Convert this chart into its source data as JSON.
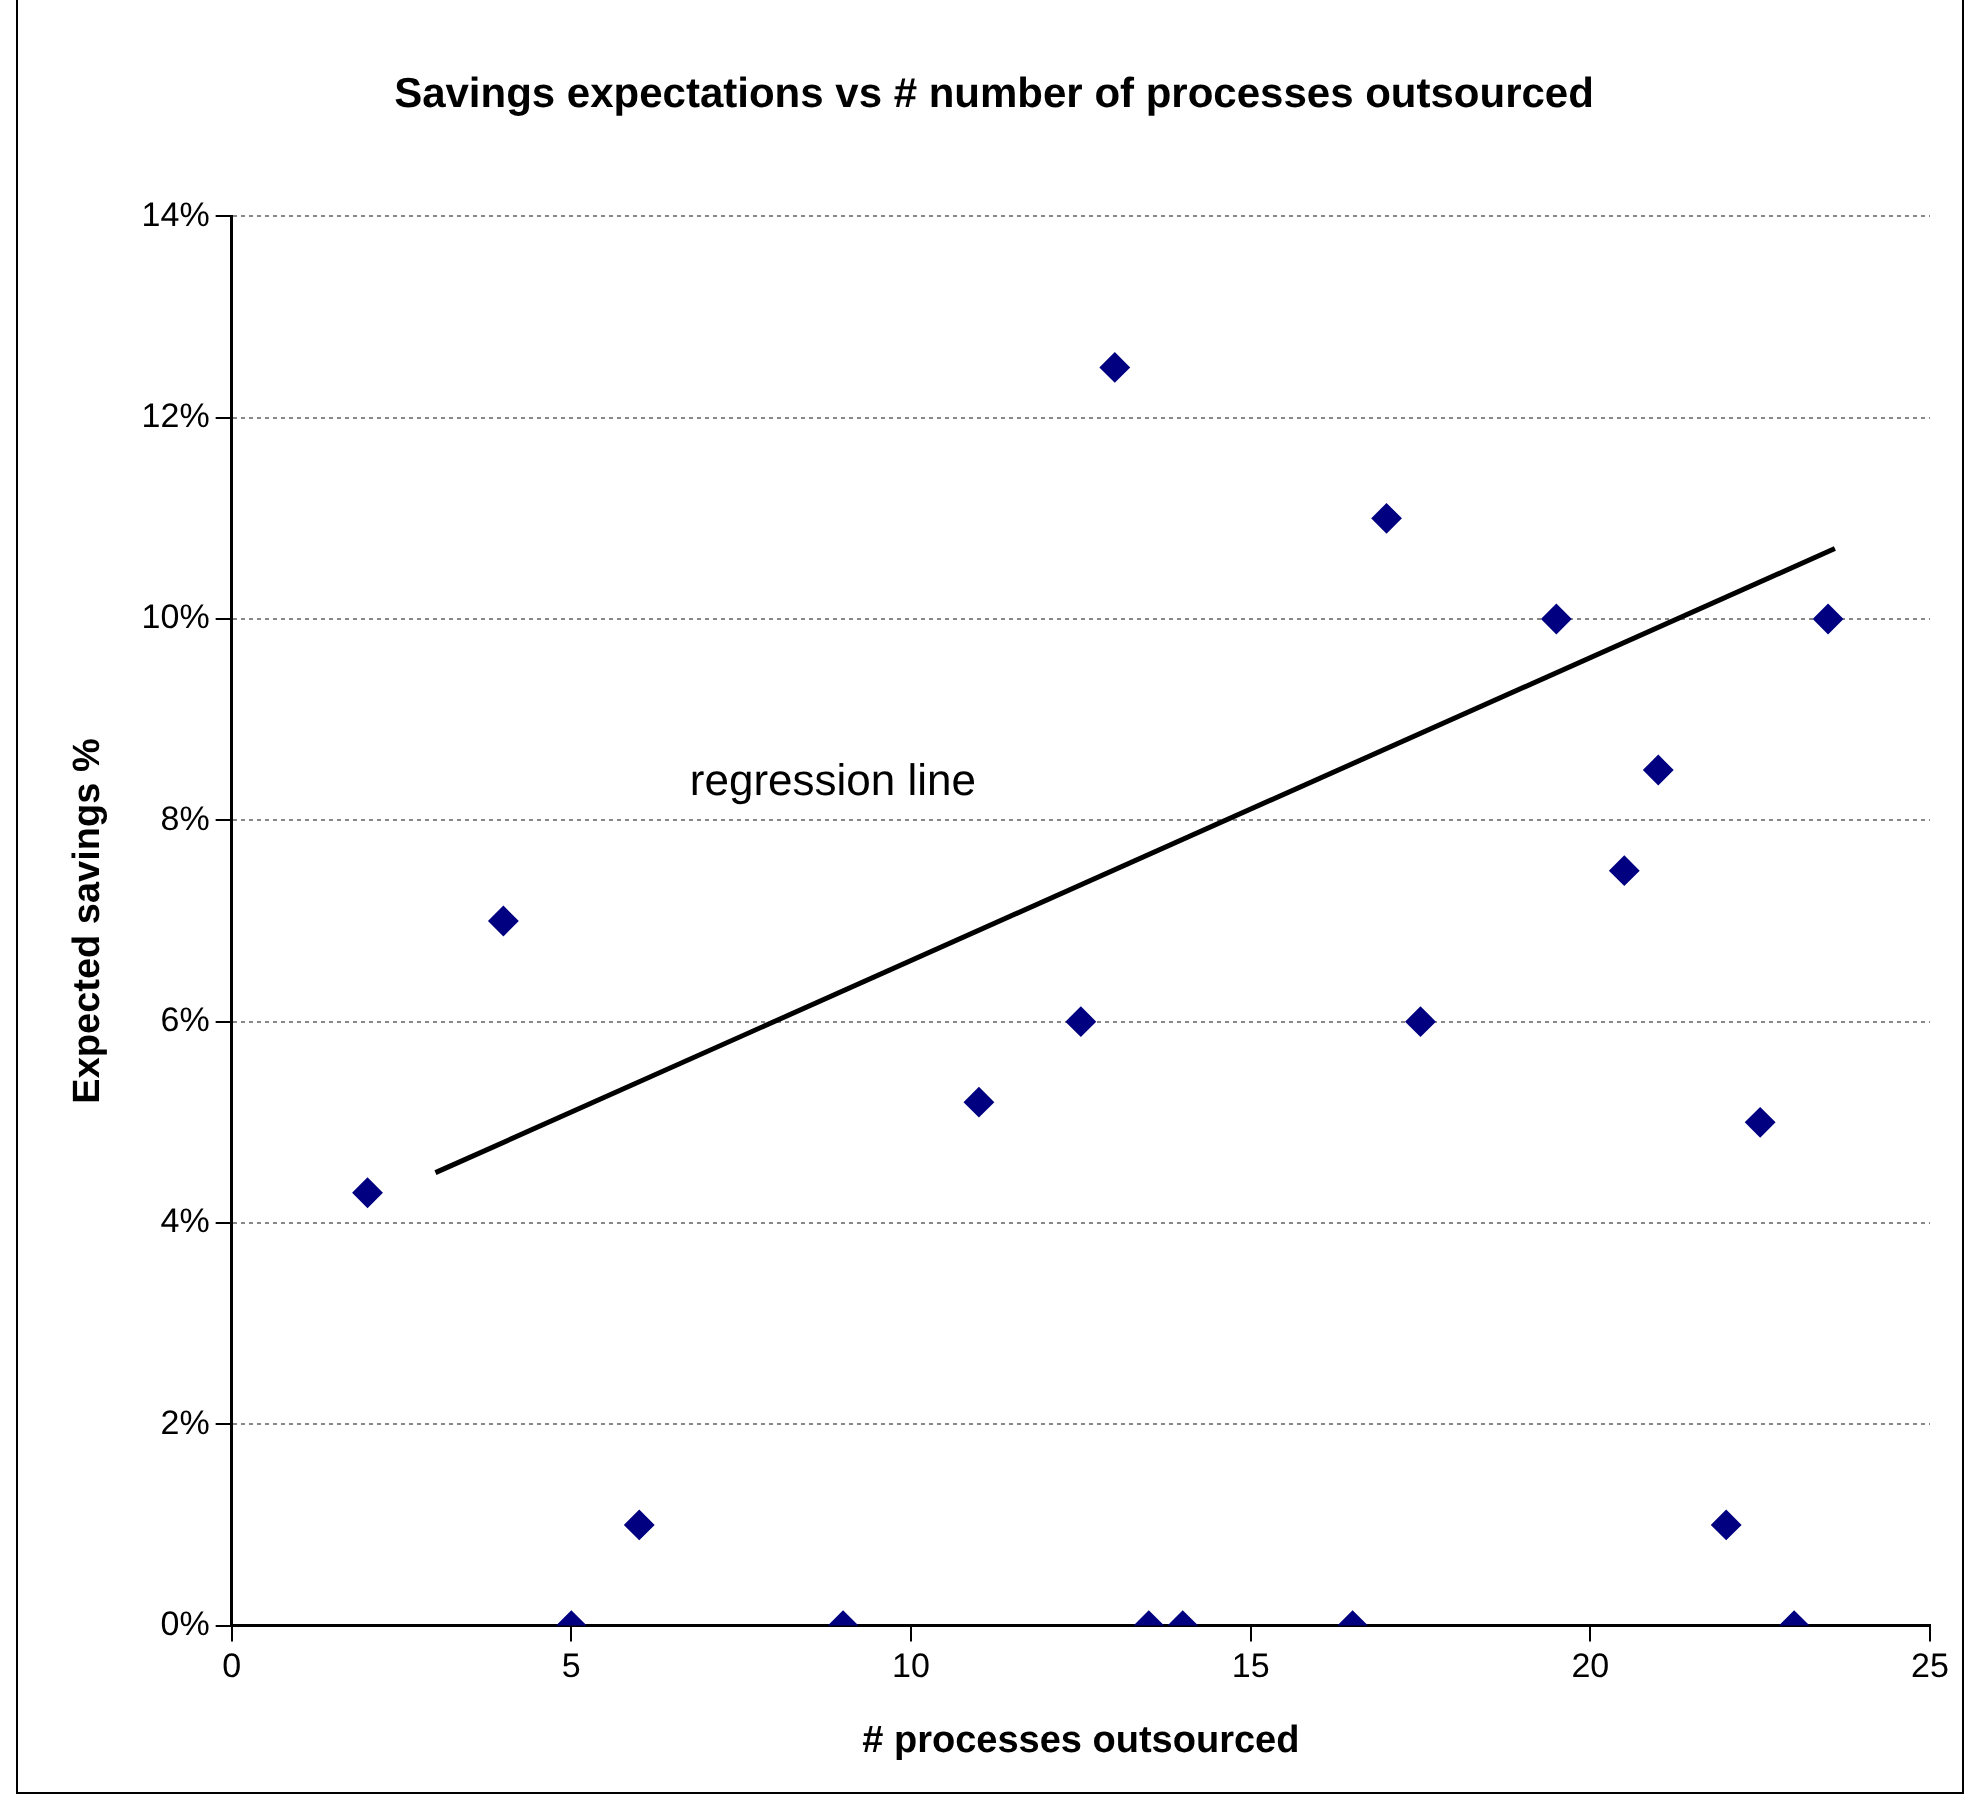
{
  "chart_data": {
    "type": "scatter",
    "title": "Savings expectations vs # number of processes outsourced",
    "xlabel": "# processes outsourced",
    "ylabel": "Expected savings %",
    "x": [
      2,
      4,
      5,
      6,
      9,
      11,
      12.5,
      13,
      13.5,
      14,
      16.5,
      17,
      17.5,
      19.5,
      20.5,
      21,
      22,
      22.5,
      23,
      23.5
    ],
    "series": [
      {
        "color": "#000080",
        "marker": "diamond",
        "values": [
          4.3,
          7,
          0,
          1,
          0,
          5.2,
          6,
          12.5,
          0,
          0,
          0,
          11,
          6,
          10,
          7.5,
          8.5,
          1,
          5,
          0,
          10
        ]
      },
      {
        "type": "line",
        "color": "#000000",
        "marker": "none",
        "line_style": "solid",
        "x": [
          3,
          23.6
        ],
        "values": [
          4.5,
          10.7
        ]
      }
    ],
    "xlim": [
      0,
      25
    ],
    "xticks": [
      0,
      5,
      10,
      15,
      20,
      25
    ],
    "ylim": [
      0,
      14
    ],
    "yticks": [
      {
        "value": 0,
        "label": "0%"
      },
      {
        "value": 2,
        "label": "2%"
      },
      {
        "value": 4,
        "label": "4%"
      },
      {
        "value": 6,
        "label": "6%"
      },
      {
        "value": 8,
        "label": "8%"
      },
      {
        "value": 10,
        "label": "10%"
      },
      {
        "value": 12,
        "label": "12%"
      },
      {
        "value": 14,
        "label": "14%"
      }
    ],
    "grid": "y",
    "legend": false,
    "annotations": [
      "regression line"
    ]
  }
}
